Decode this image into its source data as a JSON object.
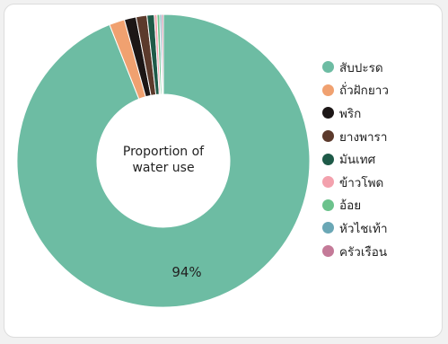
{
  "chart_data": {
    "type": "pie",
    "donut": true,
    "center_text_line1": "Proportion of",
    "center_text_line2": "water use",
    "legend_position": "right",
    "categories": [
      "สับปะรด",
      "ถั่วฝักยาว",
      "พริก",
      "ยางพารา",
      "มันเทศ",
      "ข้าวโพด",
      "อ้อย",
      "หัวไชเท้า",
      "ครัวเรือน"
    ],
    "values": [
      94.0,
      1.7,
      1.3,
      1.2,
      0.8,
      0.3,
      0.3,
      0.2,
      0.2
    ],
    "colors": [
      "#6dbca3",
      "#f0a170",
      "#1c1616",
      "#5c3a2c",
      "#1e5a48",
      "#f3a1ad",
      "#6cc28c",
      "#6aa7b5",
      "#c47a98"
    ],
    "slice_labels": [
      {
        "index": 0,
        "text": "94%"
      }
    ]
  }
}
